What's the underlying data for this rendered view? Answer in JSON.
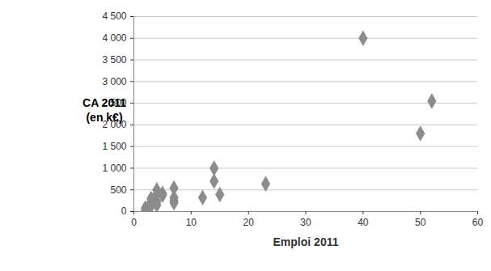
{
  "chart_data": {
    "type": "scatter",
    "xlabel": "Emploi 2011",
    "ylabel": "CA 2011\n(en k€)",
    "x": [
      40,
      52,
      50,
      14,
      14,
      23,
      7,
      4,
      5,
      4,
      15,
      12,
      7,
      3,
      7,
      4,
      3,
      7,
      4,
      3,
      2,
      2,
      2,
      5
    ],
    "values": [
      4000,
      2550,
      1800,
      1000,
      700,
      640,
      540,
      500,
      420,
      400,
      390,
      320,
      320,
      300,
      250,
      230,
      220,
      200,
      150,
      130,
      80,
      30,
      0,
      380
    ],
    "color": "#8c8c8c",
    "marker": "diamond",
    "xlim": [
      0,
      60
    ],
    "xticks": [
      0,
      10,
      20,
      30,
      40,
      50,
      60
    ],
    "ylim": [
      0,
      4500
    ],
    "yticks": [
      0,
      500,
      {
        "value": 1000,
        "label": "1 000"
      },
      {
        "value": 1500,
        "label": "1 500"
      },
      {
        "value": 2000,
        "label": "2 000"
      },
      {
        "value": 2500,
        "label": "2 500"
      },
      {
        "value": 3000,
        "label": "3 000"
      },
      {
        "value": 3500,
        "label": "3 500"
      },
      {
        "value": 4000,
        "label": "4 000"
      },
      {
        "value": 4500,
        "label": "4 500"
      }
    ],
    "grid": true
  }
}
